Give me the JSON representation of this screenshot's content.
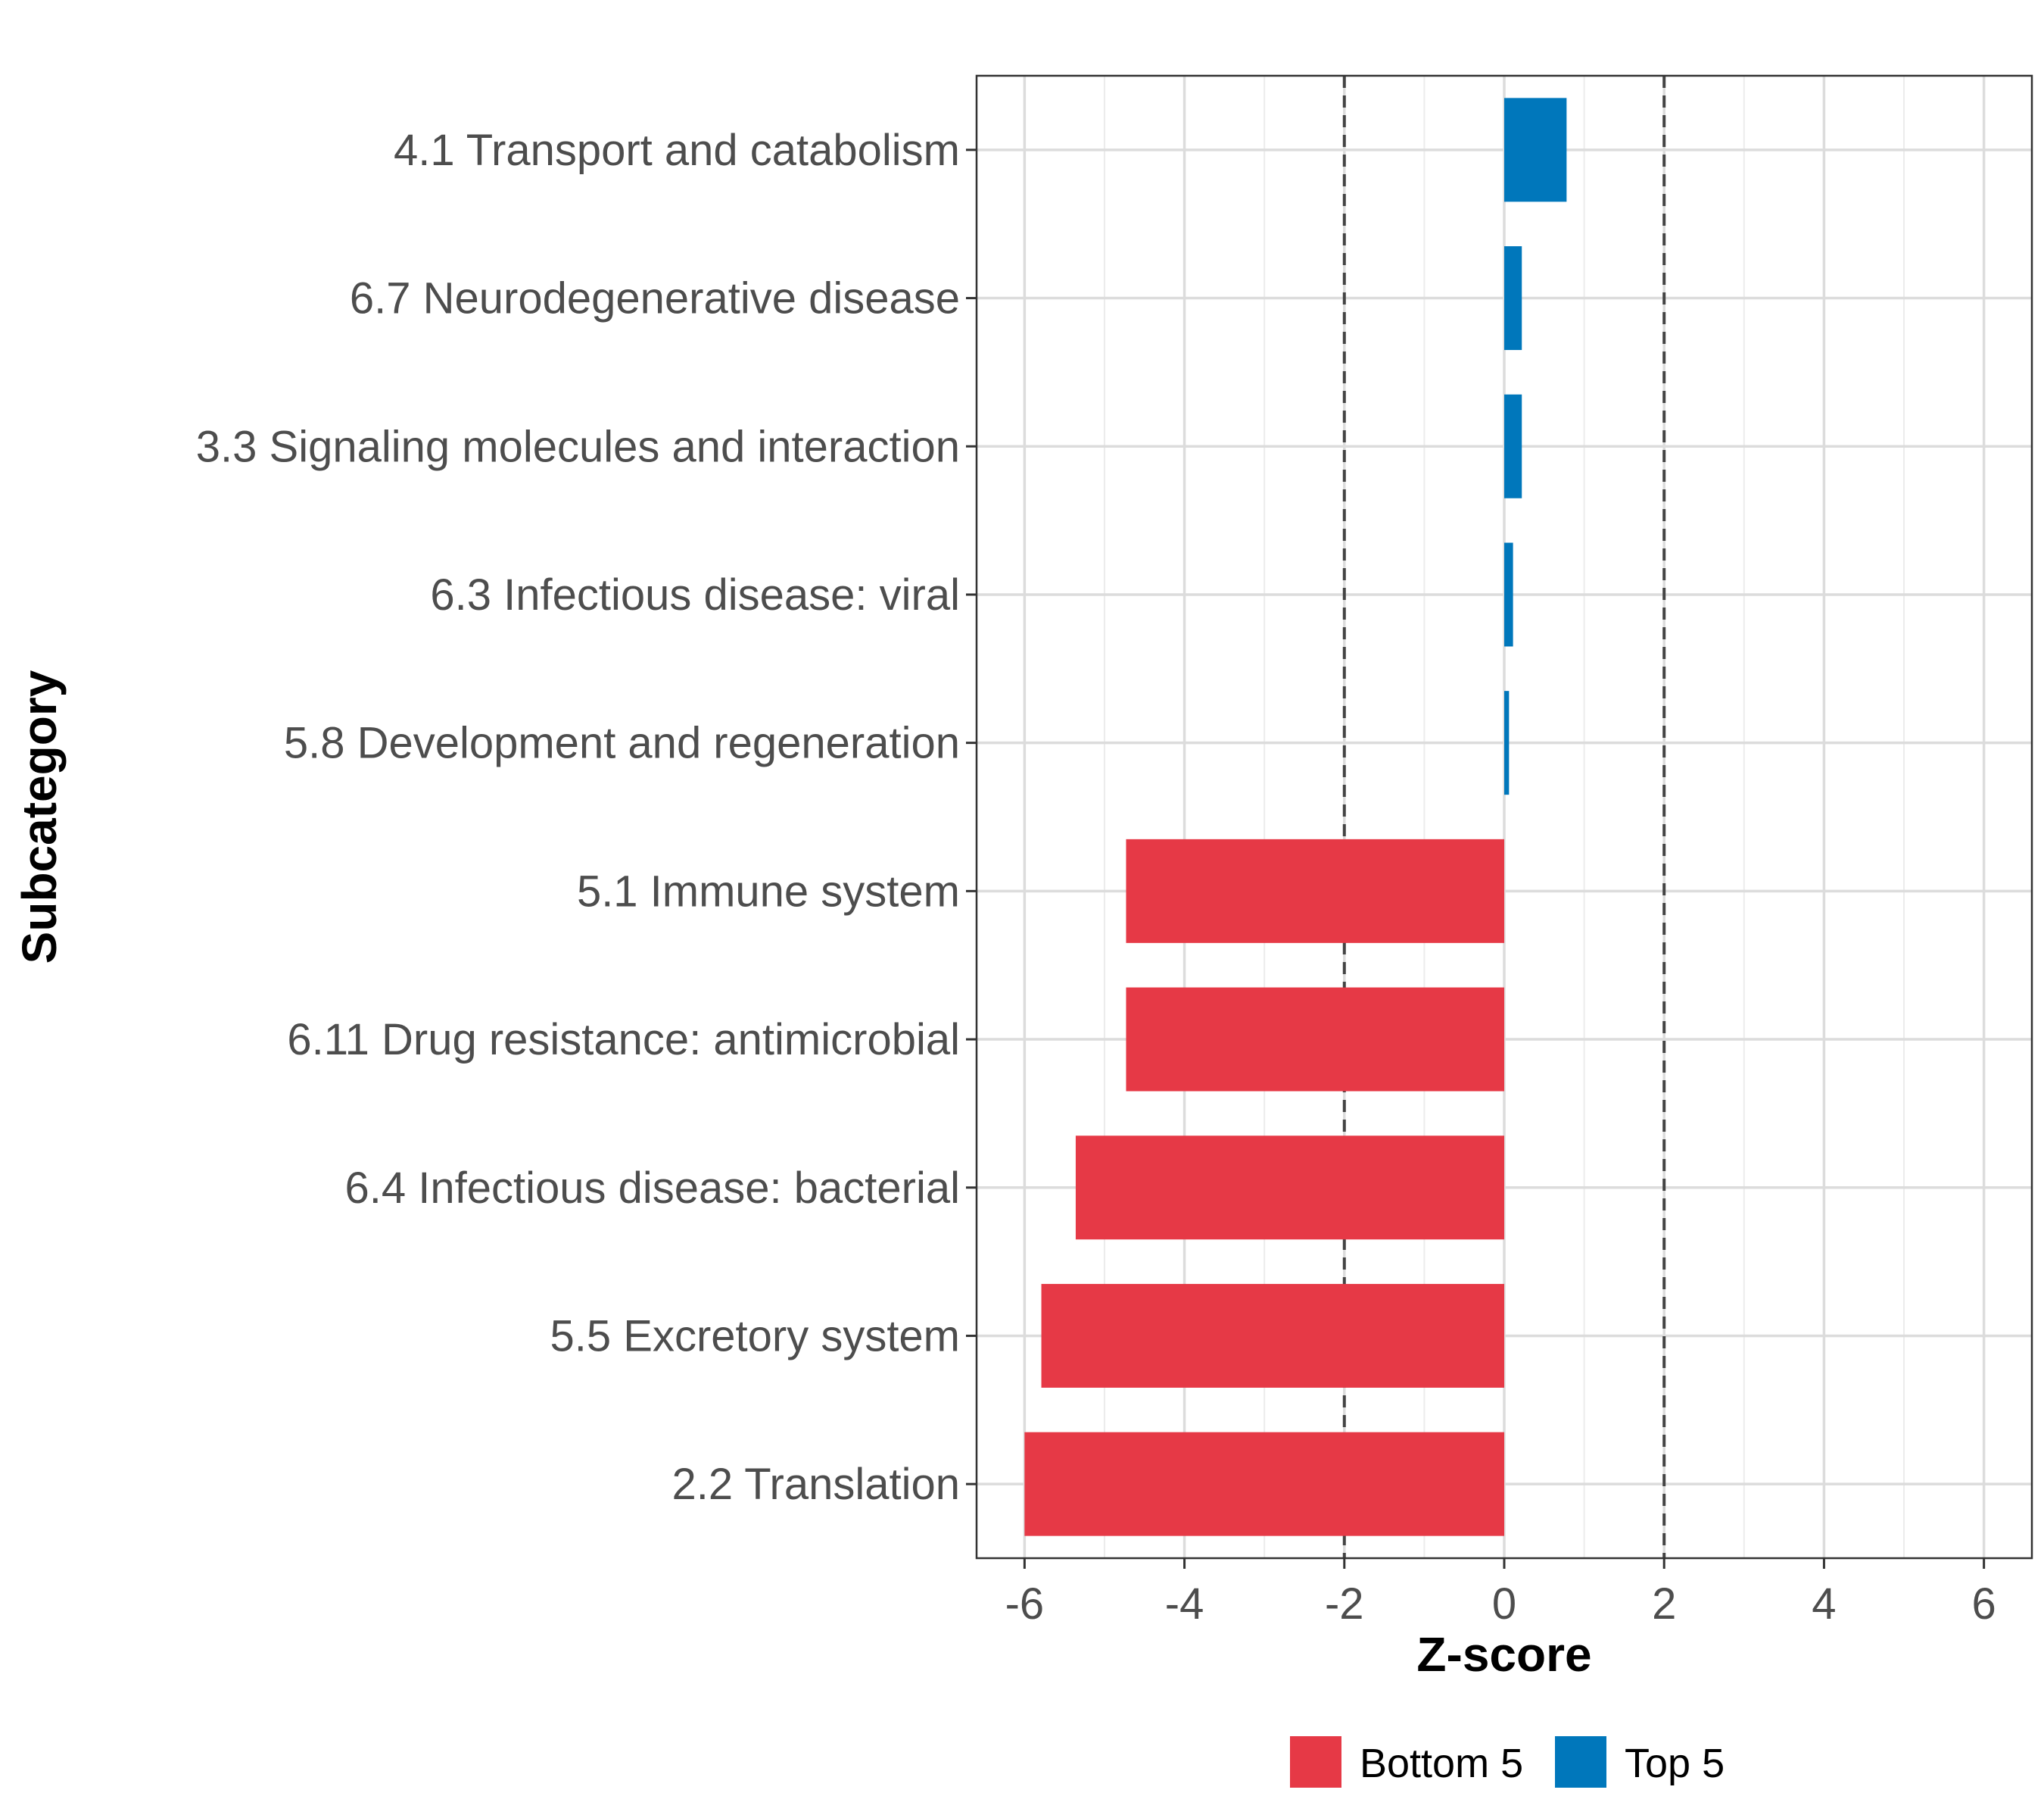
{
  "chart_data": {
    "type": "bar",
    "orientation": "horizontal",
    "title": "",
    "xlabel": "Z-score",
    "ylabel": "Subcategory",
    "xlim": [
      -6.6,
      6.6
    ],
    "xticks": [
      -6,
      -4,
      -2,
      0,
      2,
      4,
      6
    ],
    "reference_lines": [
      -2,
      2
    ],
    "grid": true,
    "legend_position": "bottom",
    "categories": [
      "4.1 Transport and catabolism",
      "6.7 Neurodegenerative disease",
      "3.3 Signaling molecules and interaction",
      "6.3 Infectious disease: viral",
      "5.8 Development and regeneration",
      "5.1 Immune system",
      "6.11 Drug resistance: antimicrobial",
      "6.4 Infectious disease: bacterial",
      "5.5 Excretory system",
      "2.2 Translation"
    ],
    "values": [
      0.78,
      0.22,
      0.22,
      0.11,
      0.06,
      -4.73,
      -4.73,
      -5.36,
      -5.79,
      -6.0
    ],
    "groups": [
      "Top 5",
      "Top 5",
      "Top 5",
      "Top 5",
      "Top 5",
      "Bottom 5",
      "Bottom 5",
      "Bottom 5",
      "Bottom 5",
      "Bottom 5"
    ],
    "legend": [
      {
        "name": "Bottom 5",
        "color": "#e63946"
      },
      {
        "name": "Top 5",
        "color": "#0077bb"
      }
    ]
  }
}
